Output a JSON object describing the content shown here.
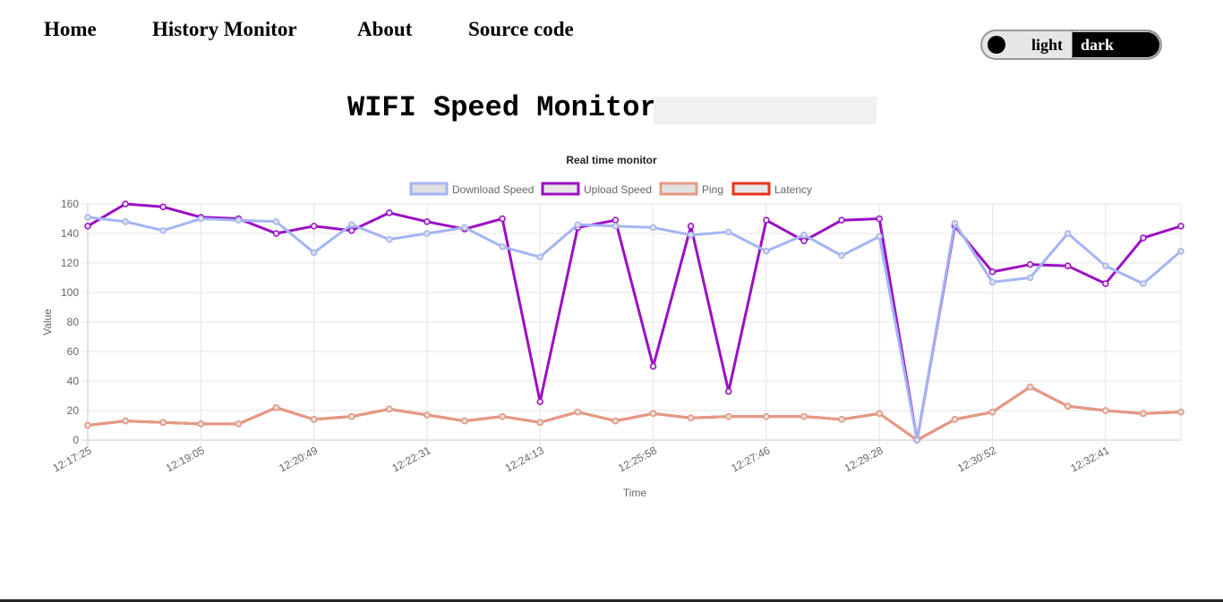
{
  "nav": {
    "items": [
      {
        "label": "Home"
      },
      {
        "label": "History Monitor"
      },
      {
        "label": "About"
      },
      {
        "label": "Source code"
      }
    ]
  },
  "theme_toggle": {
    "light_label": "light",
    "dark_label": "dark"
  },
  "page": {
    "title": "WIFI Speed Monitor",
    "status_text": ""
  },
  "chart_data": {
    "type": "line",
    "title": "Real time monitor",
    "xlabel": "Time",
    "ylabel": "Value",
    "ylim": [
      0,
      160
    ],
    "yticks": [
      0,
      20,
      40,
      60,
      80,
      100,
      120,
      140,
      160
    ],
    "grid": true,
    "legend_position": "top",
    "x": [
      "12:17:25",
      "12:17:50",
      "12:18:15",
      "12:19:05",
      "12:19:30",
      "12:19:59",
      "12:20:49",
      "12:21:14",
      "12:22:06",
      "12:22:31",
      "12:22:56",
      "12:23:48",
      "12:24:13",
      "12:24:38",
      "12:25:33",
      "12:25:58",
      "12:26:23",
      "12:27:21",
      "12:27:46",
      "12:28:11",
      "12:29:03",
      "12:29:28",
      "12:29:53",
      "12:30:27",
      "12:30:52",
      "12:31:17",
      "12:32:16",
      "12:32:41",
      "12:33:06",
      "12:33:31"
    ],
    "xtick_labels": [
      "12:17:25",
      "12:19:05",
      "12:20:49",
      "12:22:31",
      "12:24:13",
      "12:25:58",
      "12:27:46",
      "12:29:28",
      "12:30:52",
      "12:32:41"
    ],
    "series": [
      {
        "name": "Download Speed",
        "color": "#a4b4f4",
        "fill": "#e0e0e0",
        "values": [
          151,
          148,
          142,
          150,
          149,
          148,
          127,
          146,
          136,
          140,
          144,
          131,
          124,
          146,
          145,
          144,
          139,
          141,
          128,
          139,
          125,
          138,
          0,
          147,
          107,
          110,
          140,
          118,
          106,
          128
        ]
      },
      {
        "name": "Upload Speed",
        "color": "#9b0fc4",
        "fill": "#e6e6e6",
        "values": [
          145,
          160,
          158,
          151,
          150,
          140,
          145,
          142,
          154,
          148,
          143,
          150,
          26,
          144,
          149,
          50,
          145,
          33,
          149,
          135,
          149,
          150,
          0,
          145,
          114,
          119,
          118,
          106,
          137,
          145
        ]
      },
      {
        "name": "Ping",
        "color": "#e49a86",
        "fill": "#e2e2e2",
        "values": [
          10,
          13,
          12,
          11,
          11,
          22,
          14,
          16,
          21,
          17,
          13,
          16,
          12,
          19,
          13,
          18,
          15,
          16,
          16,
          16,
          14,
          18,
          0,
          14,
          19,
          36,
          23,
          20,
          18,
          19
        ]
      },
      {
        "name": "Latency",
        "color": "#e8341c",
        "fill": "#e6e6e6",
        "values": [
          10,
          13,
          12,
          11,
          11,
          22,
          14,
          16,
          21,
          17,
          13,
          16,
          12,
          19,
          13,
          18,
          15,
          16,
          16,
          16,
          14,
          18,
          0,
          14,
          19,
          36,
          23,
          20,
          18,
          19
        ]
      }
    ]
  }
}
